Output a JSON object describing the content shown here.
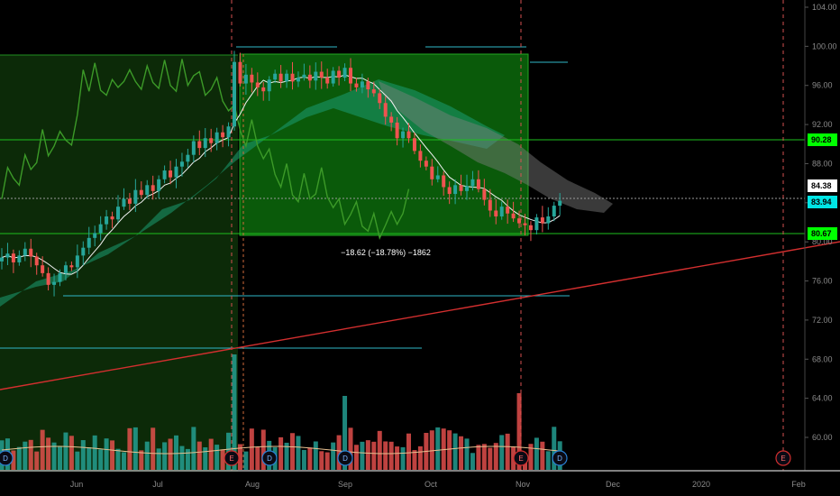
{
  "chart_data": {
    "type": "candlestick",
    "y_ticks": [
      "104.00",
      "100.00",
      "96.00",
      "92.00",
      "88.00",
      "84.00",
      "80.00",
      "76.00",
      "72.00",
      "68.00",
      "64.00",
      "60.00"
    ],
    "ylim": [
      57,
      105
    ],
    "x_ticks": [
      "Jun",
      "Jul",
      "Aug",
      "Sep",
      "Oct",
      "Nov",
      "Dec",
      "2020",
      "Feb"
    ],
    "price_tags": [
      {
        "value": "90.28",
        "color": "#00ff00"
      },
      {
        "value": "84.38",
        "color": "#ffffff"
      },
      {
        "value": "83.94",
        "color": "#00e5e5"
      },
      {
        "value": "80.67",
        "color": "#00ff00"
      }
    ],
    "measure_text": "−18.62 (−18.78%) −1862",
    "event_markers": [
      {
        "label": "D",
        "type": "dividend"
      },
      {
        "label": "E",
        "type": "earnings"
      },
      {
        "label": "D",
        "type": "dividend"
      },
      {
        "label": "D",
        "type": "dividend"
      },
      {
        "label": "E",
        "type": "earnings"
      },
      {
        "label": "D",
        "type": "dividend"
      },
      {
        "label": "E",
        "type": "earnings"
      }
    ],
    "colors": {
      "up": "#26a69a",
      "down": "#ef5350",
      "zone": "#00ff00",
      "trendline": "#d32f2f",
      "horizontal": "#2fb7c9"
    },
    "series": [
      {
        "values": [
          78.4,
          78.8,
          77.9,
          78.6,
          79.3,
          78.5,
          77.6,
          76.8,
          75.6,
          75.9,
          76.8,
          77.6,
          77.4,
          78.6,
          79.4,
          80.4,
          80.9,
          81.8,
          82.6,
          82.3,
          83.6,
          84.4,
          83.9,
          85.3,
          84.8,
          85.8,
          85.2,
          86.4,
          87.3,
          86.6,
          87.7,
          88.2,
          88.9,
          90.3,
          89.6,
          90.6,
          90.1,
          91.2,
          90.7,
          91.8,
          98.4,
          96.2,
          97.1,
          96.3,
          95.8,
          95.4,
          96.6,
          97.2,
          96.4,
          97.2,
          96.4,
          96.8,
          97.1,
          96.5,
          97.4,
          96.8,
          96.2,
          97.5,
          96.8,
          97.8,
          96.2,
          95.8,
          96.4,
          95.6,
          95.2,
          94.2,
          92.8,
          92.2,
          90.6,
          91.3,
          90.6,
          89.3,
          88.3,
          87.7,
          86.4,
          86.8,
          85.6,
          84.9,
          85.8,
          85.2,
          85.7,
          86.4,
          85.4,
          84.3,
          83.2,
          82.6,
          83.6,
          82.9,
          82.4,
          81.9,
          81.7,
          81.2,
          82.5,
          81.9,
          82.6,
          83.7,
          84.2
        ]
      }
    ]
  }
}
